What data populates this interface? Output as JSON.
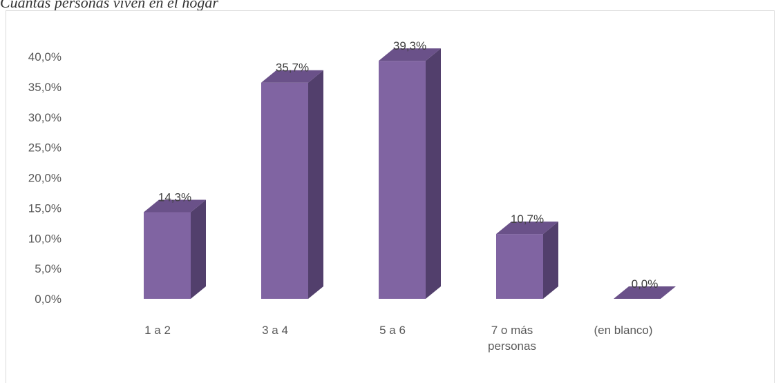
{
  "chart_data": {
    "type": "bar",
    "title": "Cuántas personas viven en el hogar",
    "categories": [
      "1 a 2",
      "3 a 4",
      "5 a 6",
      "7 o más personas",
      "(en blanco)"
    ],
    "category_lines": [
      [
        "1 a 2"
      ],
      [
        "3 a 4"
      ],
      [
        "5 a 6"
      ],
      [
        "7 o más",
        "personas"
      ],
      [
        "(en blanco)"
      ]
    ],
    "values": [
      14.3,
      35.7,
      39.3,
      10.7,
      0.0
    ],
    "data_labels": [
      "14,3%",
      "35,7%",
      "39,3%",
      "10,7%",
      "0,0%"
    ],
    "y_ticks": [
      "0,0%",
      "5,0%",
      "10,0%",
      "15,0%",
      "20,0%",
      "25,0%",
      "30,0%",
      "35,0%",
      "40,0%"
    ],
    "ylim": [
      0,
      40
    ],
    "grid": false,
    "bar_3d": true,
    "colors": {
      "front": "#8064a2",
      "side": "#523f6c",
      "top": "#6a5189"
    }
  }
}
